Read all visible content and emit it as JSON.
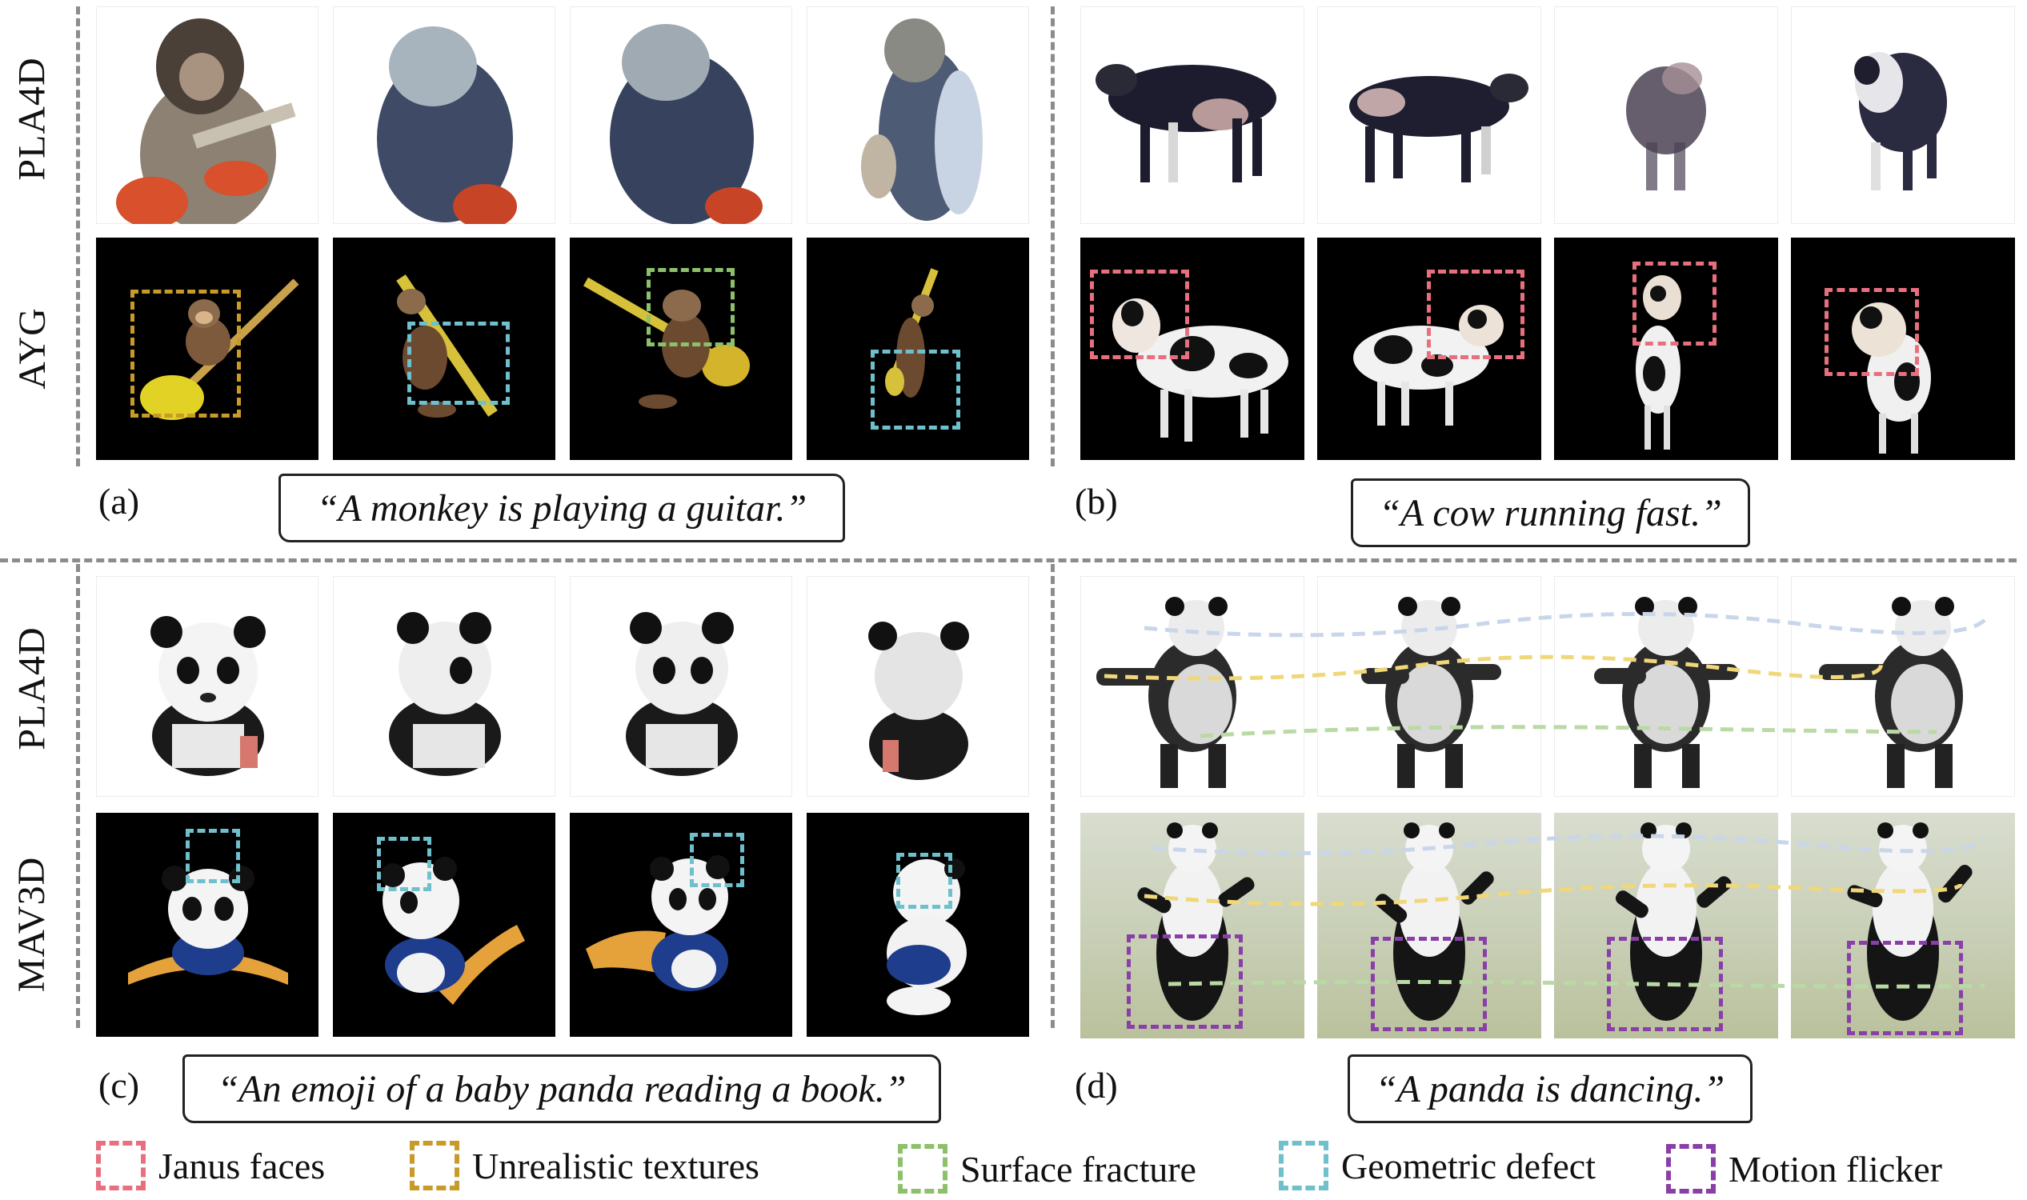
{
  "panels": {
    "a": {
      "letter": "(a)",
      "caption": "“A monkey is playing a guitar.”",
      "rows": [
        "PLA4D",
        "AYG"
      ]
    },
    "b": {
      "letter": "(b)",
      "caption": "“A cow running fast.”"
    },
    "c": {
      "letter": "(c)",
      "caption": "“An emoji of a baby panda reading a book.”",
      "rows": [
        "PLA4D",
        "MAV3D"
      ]
    },
    "d": {
      "letter": "(d)",
      "caption": "“A panda is dancing.”"
    }
  },
  "legend": [
    {
      "label": "Janus faces",
      "color": "#e8707e"
    },
    {
      "label": "Unrealistic textures",
      "color": "#c89a2a"
    },
    {
      "label": "Surface fracture",
      "color": "#8cc06a"
    },
    {
      "label": "Geometric defect",
      "color": "#6ec0cc"
    },
    {
      "label": "Motion flicker",
      "color": "#8a3fa8"
    }
  ]
}
